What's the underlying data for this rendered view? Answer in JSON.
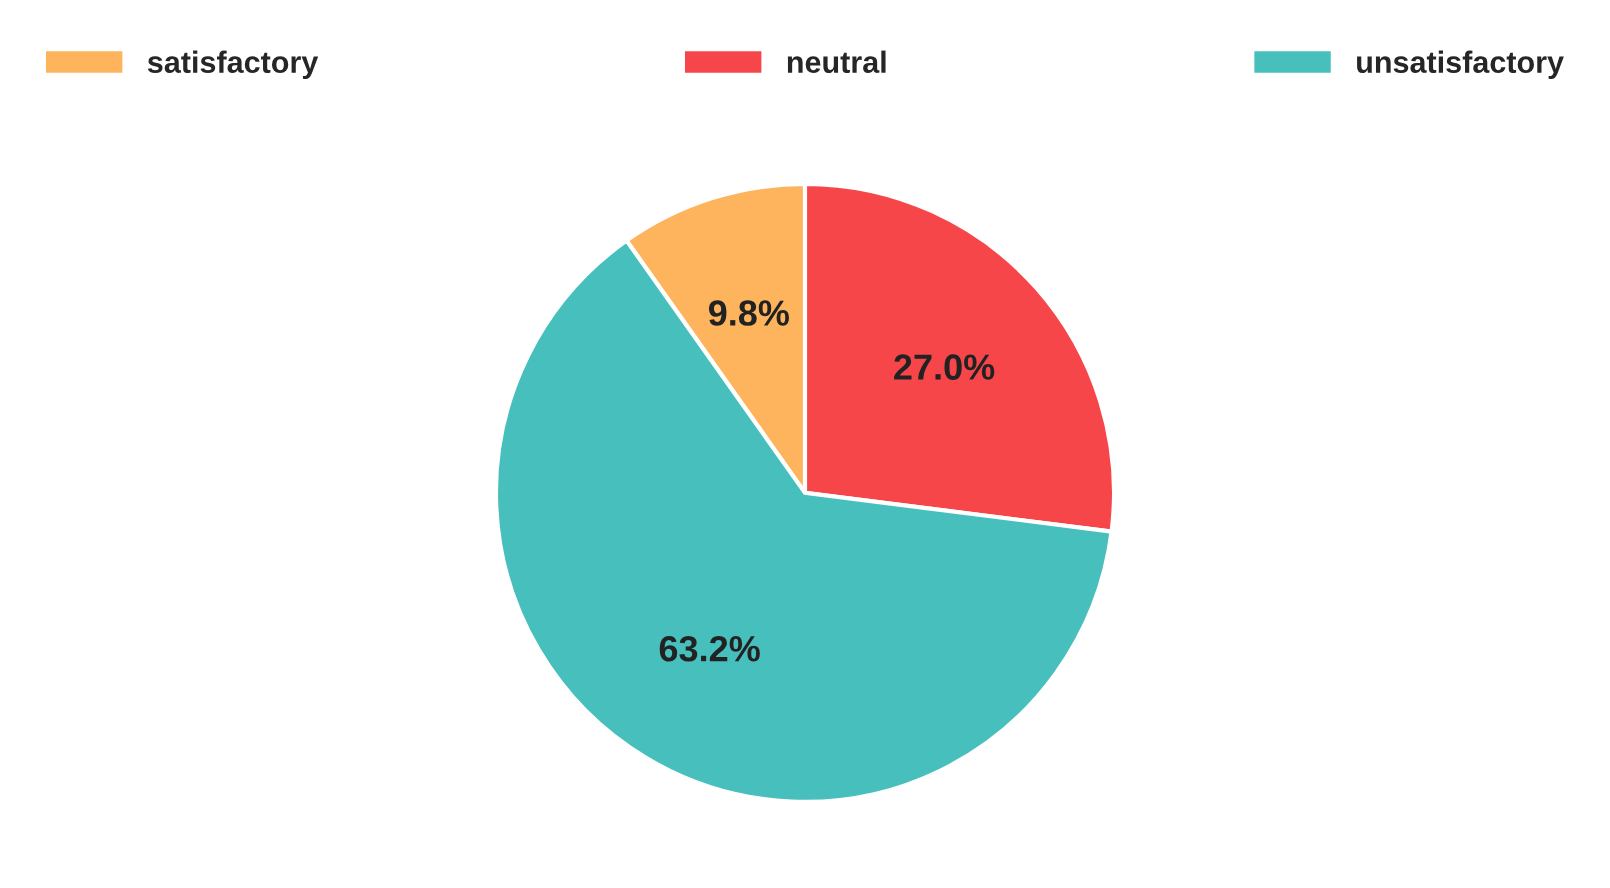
{
  "chart_data": {
    "type": "pie",
    "categories": [
      "satisfactory",
      "neutral",
      "unsatisfactory"
    ],
    "values": [
      9.8,
      27.0,
      63.2
    ],
    "colors": [
      "#fdb45c",
      "#f7464a",
      "#46bfbd"
    ],
    "value_labels": [
      "9.8%",
      "27.0%",
      "63.2%"
    ],
    "legend": "top"
  }
}
